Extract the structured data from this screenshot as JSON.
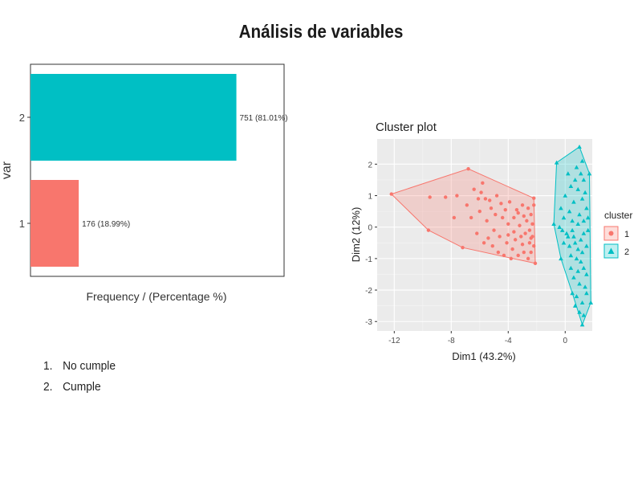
{
  "page": {
    "title": "Análisis de variables"
  },
  "notes": [
    {
      "number": "1.",
      "text": "No cumple"
    },
    {
      "number": "2.",
      "text": "Cumple"
    }
  ],
  "colors": {
    "cluster1": "#F8766D",
    "cluster2": "#00BFC4",
    "panel": "#EBEBEB"
  },
  "chart_data": [
    {
      "type": "bar",
      "orientation": "horizontal",
      "title": "",
      "xlabel": "Frequency / (Percentage %)",
      "ylabel": "var",
      "categories": [
        "1",
        "2"
      ],
      "values": [
        176,
        751
      ],
      "data_labels": [
        "176 (18.99%)",
        "751 (81.01%)"
      ],
      "colors": [
        "#F8766D",
        "#00BFC4"
      ],
      "xlim": [
        0,
        925
      ],
      "grid": false
    },
    {
      "type": "scatter",
      "title": "Cluster plot",
      "xlabel": "Dim1 (43.2%)",
      "ylabel": "Dim2 (12%)",
      "xlim": [
        -13.2,
        1.9
      ],
      "ylim": [
        -3.3,
        2.8
      ],
      "xticks": [
        "-12",
        "-8",
        "-4",
        "0"
      ],
      "yticks": [
        "2",
        "1",
        "0",
        "-1",
        "-2",
        "-3"
      ],
      "grid": true,
      "legend": {
        "title": "cluster",
        "position": "right",
        "entries": [
          "1",
          "2"
        ]
      },
      "series": [
        {
          "name": "1",
          "marker": "circle",
          "hull": [
            [
              -12.2,
              1.05
            ],
            [
              -6.8,
              1.85
            ],
            [
              -2.2,
              0.92
            ],
            [
              -2.1,
              -1.15
            ],
            [
              -7.2,
              -0.65
            ],
            [
              -9.6,
              -0.1
            ]
          ],
          "points": [
            [
              -12.2,
              1.05
            ],
            [
              -9.6,
              -0.1
            ],
            [
              -6.8,
              1.85
            ],
            [
              -7.2,
              -0.65
            ],
            [
              -2.2,
              0.92
            ],
            [
              -2.1,
              -1.15
            ],
            [
              -9.5,
              0.95
            ],
            [
              -8.4,
              0.95
            ],
            [
              -7.6,
              1.0
            ],
            [
              -6.4,
              1.2
            ],
            [
              -5.9,
              1.1
            ],
            [
              -5.6,
              0.9
            ],
            [
              -5.2,
              0.6
            ],
            [
              -4.9,
              0.4
            ],
            [
              -4.4,
              0.3
            ],
            [
              -4.0,
              0.1
            ],
            [
              -3.6,
              0.3
            ],
            [
              -3.2,
              0.05
            ],
            [
              -2.8,
              -0.2
            ],
            [
              -2.5,
              -0.5
            ],
            [
              -6.0,
              0.5
            ],
            [
              -5.5,
              0.2
            ],
            [
              -5.0,
              -0.1
            ],
            [
              -4.6,
              -0.3
            ],
            [
              -4.1,
              -0.5
            ],
            [
              -3.7,
              -0.7
            ],
            [
              -3.3,
              -0.9
            ],
            [
              -2.9,
              -0.8
            ],
            [
              -2.6,
              0.6
            ],
            [
              -2.4,
              0.4
            ],
            [
              -2.3,
              0.1
            ],
            [
              -2.3,
              -0.3
            ],
            [
              -2.4,
              -0.8
            ],
            [
              -3.0,
              0.7
            ],
            [
              -3.4,
              0.55
            ],
            [
              -3.9,
              0.8
            ],
            [
              -4.5,
              0.75
            ],
            [
              -5.3,
              0.85
            ],
            [
              -6.6,
              0.3
            ],
            [
              -6.2,
              -0.2
            ],
            [
              -5.7,
              -0.5
            ],
            [
              -5.1,
              -0.6
            ],
            [
              -4.7,
              -0.8
            ],
            [
              -4.3,
              -0.9
            ],
            [
              -3.8,
              -1.0
            ],
            [
              -3.5,
              -0.4
            ],
            [
              -3.1,
              -0.3
            ],
            [
              -2.7,
              0.2
            ],
            [
              -2.5,
              -0.1
            ],
            [
              -2.2,
              0.7
            ],
            [
              -2.2,
              -0.6
            ],
            [
              -6.9,
              0.7
            ],
            [
              -7.8,
              0.3
            ],
            [
              -5.8,
              1.4
            ],
            [
              -4.8,
              1.0
            ],
            [
              -4.2,
              0.55
            ],
            [
              -3.6,
              -0.15
            ],
            [
              -3.0,
              -0.55
            ],
            [
              -2.6,
              -1.0
            ],
            [
              -4.0,
              -0.25
            ],
            [
              -5.4,
              -0.35
            ],
            [
              -6.1,
              0.9
            ],
            [
              -3.3,
              0.45
            ],
            [
              -2.9,
              0.35
            ],
            [
              -2.4,
              -0.35
            ]
          ]
        },
        {
          "name": "2",
          "marker": "triangle",
          "hull": [
            [
              -0.6,
              2.05
            ],
            [
              1.0,
              2.55
            ],
            [
              1.7,
              1.7
            ],
            [
              1.8,
              -2.4
            ],
            [
              1.2,
              -3.1
            ],
            [
              0.5,
              -2.1
            ],
            [
              -0.3,
              -1.0
            ],
            [
              -0.8,
              0.1
            ]
          ],
          "points": [
            [
              -0.6,
              2.05
            ],
            [
              1.0,
              2.55
            ],
            [
              1.7,
              1.7
            ],
            [
              1.8,
              -2.4
            ],
            [
              1.2,
              -3.1
            ],
            [
              0.5,
              -2.1
            ],
            [
              -0.3,
              -1.0
            ],
            [
              -0.8,
              0.1
            ],
            [
              0.2,
              1.7
            ],
            [
              0.8,
              1.9
            ],
            [
              1.3,
              1.5
            ],
            [
              0.9,
              1.2
            ],
            [
              1.2,
              0.9
            ],
            [
              1.5,
              0.6
            ],
            [
              0.6,
              0.8
            ],
            [
              0.3,
              0.5
            ],
            [
              -0.1,
              0.3
            ],
            [
              -0.4,
              0.0
            ],
            [
              0.1,
              -0.2
            ],
            [
              0.5,
              -0.1
            ],
            [
              0.9,
              0.1
            ],
            [
              1.3,
              0.2
            ],
            [
              1.6,
              -0.1
            ],
            [
              1.1,
              -0.4
            ],
            [
              0.7,
              -0.5
            ],
            [
              0.3,
              -0.6
            ],
            [
              -0.1,
              -0.5
            ],
            [
              0.4,
              -0.9
            ],
            [
              0.8,
              -1.0
            ],
            [
              1.2,
              -0.8
            ],
            [
              1.5,
              -0.6
            ],
            [
              0.9,
              -1.4
            ],
            [
              1.3,
              -1.3
            ],
            [
              0.6,
              -1.6
            ],
            [
              1.0,
              -1.8
            ],
            [
              1.4,
              -1.9
            ],
            [
              0.8,
              -2.2
            ],
            [
              1.2,
              -2.4
            ],
            [
              1.5,
              -2.1
            ],
            [
              1.0,
              -2.7
            ],
            [
              1.3,
              -2.8
            ],
            [
              0.7,
              -2.5
            ],
            [
              0.4,
              -1.3
            ],
            [
              0.2,
              -0.3
            ],
            [
              -0.3,
              0.6
            ],
            [
              0.0,
              1.0
            ],
            [
              0.4,
              1.3
            ],
            [
              0.7,
              1.5
            ],
            [
              1.1,
              1.7
            ],
            [
              1.4,
              1.1
            ],
            [
              1.6,
              0.3
            ],
            [
              1.0,
              0.4
            ],
            [
              0.5,
              0.2
            ],
            [
              -0.2,
              -0.1
            ],
            [
              1.2,
              2.1
            ],
            [
              0.9,
              -0.7
            ],
            [
              1.5,
              -1.5
            ],
            [
              1.1,
              -1.1
            ],
            [
              0.6,
              -0.3
            ],
            [
              1.3,
              -0.2
            ]
          ]
        }
      ]
    }
  ]
}
